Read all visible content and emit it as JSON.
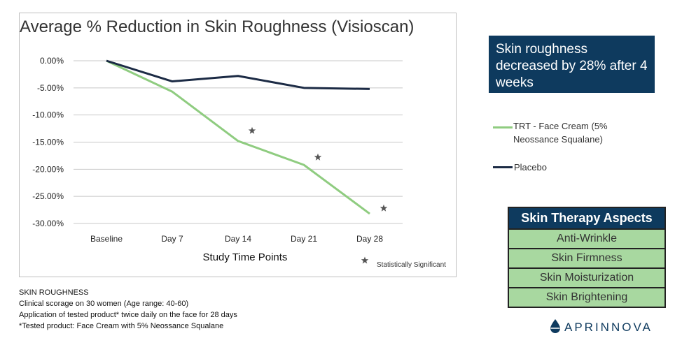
{
  "chart_data": {
    "type": "line",
    "title": "Average % Reduction in Skin Roughness (Visioscan)",
    "xlabel": "Study Time Points",
    "ylabel": "",
    "categories": [
      "Baseline",
      "Day 7",
      "Day 14",
      "Day 21",
      "Day 28"
    ],
    "y_ticks": [
      "0.00%",
      "-5.00%",
      "-10.00%",
      "-15.00%",
      "-20.00%",
      "-25.00%",
      "-30.00%"
    ],
    "ylim": [
      -30,
      0
    ],
    "grid": true,
    "series": [
      {
        "name": "TRT - Face Cream (5% Neossance Squalane)",
        "color": "#8fcc80",
        "values": [
          0,
          -5.7,
          -14.8,
          -19.2,
          -28.2
        ]
      },
      {
        "name": "Placebo",
        "color": "#1c2b45",
        "values": [
          0,
          -3.8,
          -2.8,
          -5.0,
          -5.2
        ]
      }
    ],
    "significance_markers": [
      {
        "category": "Day 14",
        "value": -12.9
      },
      {
        "category": "Day 21",
        "value": -17.8
      },
      {
        "category": "Day 28",
        "value": -27.2
      }
    ],
    "significance_label": "Statistically Significant"
  },
  "legend": {
    "trt_line1": "TRT - Face Cream (5%",
    "trt_line2": "Neossance Squalane)",
    "placebo": "Placebo"
  },
  "callout": {
    "text": "Skin roughness decreased by 28% after 4 weeks"
  },
  "aspects": {
    "header": "Skin Therapy Aspects",
    "items": [
      "Anti-Wrinkle",
      "Skin Firmness",
      "Skin Moisturization",
      "Skin Brightening"
    ]
  },
  "notes": {
    "line1": "SKIN ROUGHNESS",
    "line2": "Clinical scorage on 30 women (Age range: 40-60)",
    "line3": "Application of tested product* twice daily on the face for 28 days",
    "line4": "*Tested product: Face Cream with 5% Neossance Squalane"
  },
  "brand": {
    "name": "APRINNOVA",
    "color": "#0e3a5e"
  }
}
